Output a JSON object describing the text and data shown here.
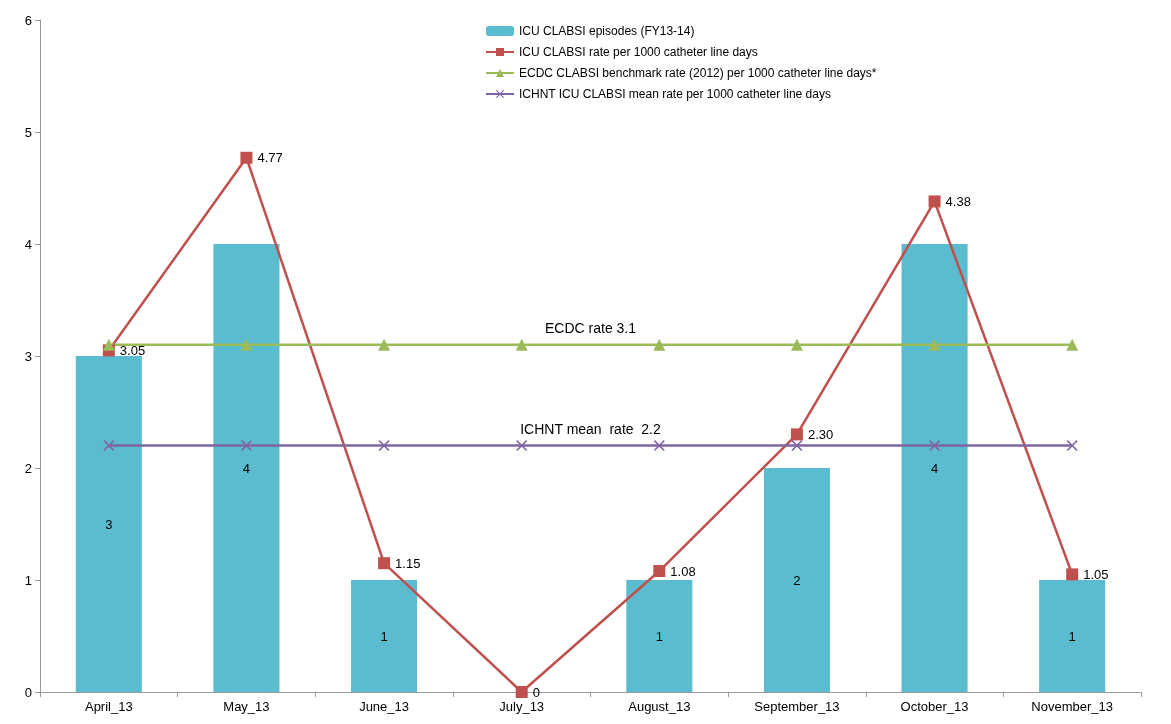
{
  "chart_data": {
    "type": "bar",
    "categories": [
      "April_13",
      "May_13",
      "June_13",
      "July_13",
      "August_13",
      "September_13",
      "October_13",
      "November_13"
    ],
    "series": [
      {
        "name": "ICU CLABSI episodes (FY13-14)",
        "color": "#5bbccf",
        "values": [
          3,
          4,
          1,
          0,
          1,
          2,
          4,
          1
        ],
        "value_labels": [
          "3",
          "4",
          "1",
          null,
          "1",
          "2",
          "4",
          "1"
        ]
      },
      {
        "name": "ICU CLABSI rate per 1000 catheter line days",
        "type": "line",
        "color": "#c0504d",
        "marker": "square",
        "values": [
          3.05,
          4.77,
          1.15,
          0,
          1.08,
          2.3,
          4.38,
          1.05
        ],
        "value_labels": [
          "3.05",
          "4.77",
          "1.15",
          "0",
          "1.08",
          "2.30",
          "4.38",
          "1.05"
        ]
      },
      {
        "name": "ECDC CLABSI benchmark rate (2012) per 1000 catheter line days*",
        "type": "line",
        "color": "#9bbb59",
        "marker": "triangle",
        "values": [
          3.1,
          3.1,
          3.1,
          3.1,
          3.1,
          3.1,
          3.1,
          3.1
        ]
      },
      {
        "name": "ICHNT ICU CLABSI mean rate per 1000 catheter line days",
        "type": "line",
        "color": "#8064a2",
        "marker": "cross",
        "values": [
          2.2,
          2.2,
          2.2,
          2.2,
          2.2,
          2.2,
          2.2,
          2.2
        ]
      }
    ],
    "annotations": [
      {
        "text": "ECDC rate 3.1",
        "x": "July_13",
        "y": 3.1
      },
      {
        "text": "ICHNT mean  rate  2.2",
        "x": "July_13",
        "y": 2.2
      }
    ],
    "ylim": [
      0,
      6
    ],
    "yticks": [
      0,
      1,
      2,
      3,
      4,
      5,
      6
    ],
    "grid": false,
    "legend": "top"
  }
}
